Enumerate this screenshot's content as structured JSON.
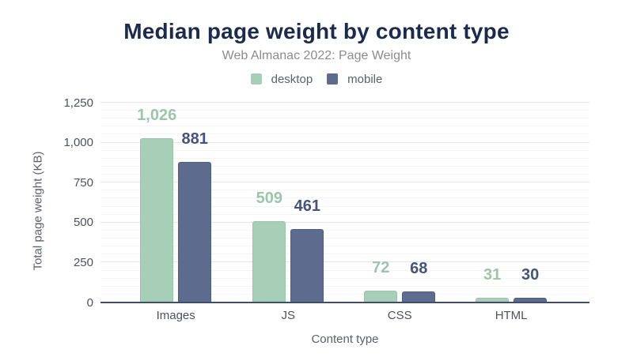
{
  "chart_data": {
    "type": "bar",
    "title": "Median page weight by content type",
    "subtitle": "Web Almanac 2022: Page Weight",
    "xlabel": "Content type",
    "ylabel": "Total page weight (KB)",
    "categories": [
      "Images",
      "JS",
      "CSS",
      "HTML"
    ],
    "series": [
      {
        "name": "desktop",
        "values": [
          1026,
          509,
          72,
          31
        ],
        "color": "#a7ceb6",
        "border_color": "#9bc5a9",
        "label_color": "#9cc6ab"
      },
      {
        "name": "mobile",
        "values": [
          881,
          461,
          68,
          30
        ],
        "color": "#5c6b8e",
        "border_color": "#4e5d83",
        "label_color": "#46547a"
      }
    ],
    "ylim": [
      0,
      1250
    ],
    "ytick_step": 250,
    "minor_gridline_step": 50,
    "ytick_labels": [
      "0",
      "250",
      "500",
      "750",
      "1,000",
      "1,250"
    ],
    "grid": true,
    "legend_position": "top"
  }
}
